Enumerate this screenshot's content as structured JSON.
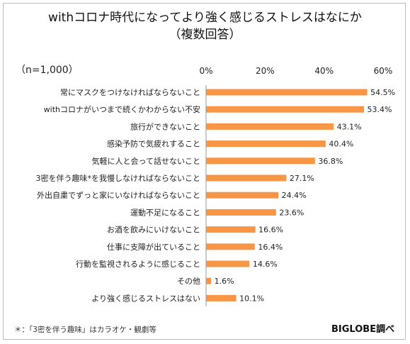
{
  "title_line1": "withコロナ時代になってより強く感じるストレスはなにか",
  "title_line2": "（複数回答）",
  "sample_size": "（n=1,000）",
  "footnote": "＊：「3密を伴う趣味」はカラオケ・観劇等",
  "source": "BIGLOBE調べ",
  "colors": {
    "bar": "#F79646",
    "axis": "#999999"
  },
  "chart_data": {
    "type": "bar",
    "orientation": "horizontal",
    "unit": "%",
    "xlim": [
      0,
      60
    ],
    "ticks": [
      0,
      20,
      40,
      60
    ],
    "tick_labels": [
      "0%",
      "20%",
      "40%",
      "60%"
    ],
    "grid": false,
    "categories": [
      "常にマスクをつけなければならないこと",
      "withコロナがいつまで続くかわからない不安",
      "旅行ができないこと",
      "感染予防で気疲れすること",
      "気軽に人と会って話せないこと",
      "3密を伴う趣味*を我慢しなければならないこと",
      "外出自粛でずっと家にいなければならないこと",
      "運動不足になること",
      "お酒を飲みにいけないこと",
      "仕事に支障が出ていること",
      "行動を監視されるように感じること",
      "その他",
      "より強く感じるストレスはない"
    ],
    "values": [
      54.5,
      53.4,
      43.1,
      40.4,
      36.8,
      27.1,
      24.4,
      23.6,
      16.6,
      16.4,
      14.6,
      1.6,
      10.1
    ],
    "value_labels": [
      "54.5%",
      "53.4%",
      "43.1%",
      "40.4%",
      "36.8%",
      "27.1%",
      "24.4%",
      "23.6%",
      "16.6%",
      "16.4%",
      "14.6%",
      "1.6%",
      "10.1%"
    ]
  }
}
